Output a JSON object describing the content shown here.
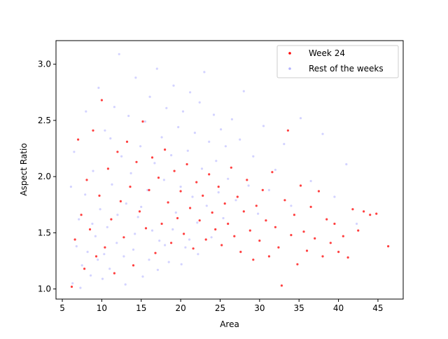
{
  "chart_data": {
    "type": "scatter",
    "title": "",
    "xlabel": "Area",
    "ylabel": "Aspect Ratio",
    "xlim": [
      4.2,
      48.2
    ],
    "ylim": [
      0.91,
      3.21
    ],
    "xticks": [
      5,
      10,
      15,
      20,
      25,
      30,
      35,
      40,
      45
    ],
    "yticks": [
      1.0,
      1.5,
      2.0,
      2.5,
      3.0
    ],
    "xtick_labels": [
      "5",
      "10",
      "15",
      "20",
      "25",
      "30",
      "35",
      "40",
      "45"
    ],
    "ytick_labels": [
      "1.0",
      "1.5",
      "2.0",
      "2.5",
      "3.0"
    ],
    "grid": false,
    "legend_position": "top-right",
    "series": [
      {
        "name": "Rest of the weeks",
        "color": "#8080ff",
        "opacity": 0.35,
        "points": [
          [
            6.3,
            1.05
          ],
          [
            6.8,
            1.38
          ],
          [
            7.1,
            1.62
          ],
          [
            7.5,
            1.21
          ],
          [
            7.9,
            1.84
          ],
          [
            8.2,
            1.33
          ],
          [
            8.6,
            1.12
          ],
          [
            8.9,
            2.05
          ],
          [
            9.2,
            1.47
          ],
          [
            9.5,
            1.26
          ],
          [
            9.8,
            1.71
          ],
          [
            10.1,
            1.09
          ],
          [
            10.4,
            2.41
          ],
          [
            10.7,
            1.55
          ],
          [
            11.0,
            1.18
          ],
          [
            11.3,
            1.93
          ],
          [
            11.6,
            2.62
          ],
          [
            11.9,
            1.41
          ],
          [
            12.2,
            3.09
          ],
          [
            12.5,
            2.18
          ],
          [
            12.8,
            1.29
          ],
          [
            13.1,
            1.76
          ],
          [
            13.4,
            2.54
          ],
          [
            13.7,
            2.03
          ],
          [
            14.0,
            1.35
          ],
          [
            14.3,
            2.88
          ],
          [
            14.6,
            1.64
          ],
          [
            14.9,
            2.27
          ],
          [
            15.2,
            1.11
          ],
          [
            15.5,
            2.49
          ],
          [
            15.8,
            1.88
          ],
          [
            16.1,
            2.71
          ],
          [
            16.4,
            1.52
          ],
          [
            16.7,
            2.12
          ],
          [
            17.0,
            2.96
          ],
          [
            17.3,
            1.43
          ],
          [
            17.6,
            2.35
          ],
          [
            17.9,
            1.97
          ],
          [
            18.2,
            2.61
          ],
          [
            18.5,
            1.24
          ],
          [
            18.8,
            2.19
          ],
          [
            19.1,
            2.81
          ],
          [
            19.4,
            1.68
          ],
          [
            19.7,
            2.44
          ],
          [
            20.0,
            1.91
          ],
          [
            20.3,
            2.58
          ],
          [
            20.6,
            1.37
          ],
          [
            20.9,
            2.23
          ],
          [
            21.2,
            2.75
          ],
          [
            21.5,
            1.82
          ],
          [
            21.8,
            2.39
          ],
          [
            22.1,
            1.59
          ],
          [
            22.4,
            2.66
          ],
          [
            22.7,
            2.07
          ],
          [
            23.0,
            2.93
          ],
          [
            23.3,
            1.74
          ],
          [
            23.6,
            2.31
          ],
          [
            23.9,
            1.46
          ],
          [
            24.2,
            2.55
          ],
          [
            24.5,
            2.14
          ],
          [
            24.8,
            1.86
          ],
          [
            25.1,
            2.42
          ],
          [
            25.4,
            1.63
          ],
          [
            25.7,
            2.27
          ],
          [
            26.0,
            1.98
          ],
          [
            26.5,
            2.51
          ],
          [
            27.0,
            1.79
          ],
          [
            27.5,
            2.33
          ],
          [
            28.0,
            2.76
          ],
          [
            28.6,
            1.92
          ],
          [
            29.2,
            2.18
          ],
          [
            29.8,
            1.67
          ],
          [
            30.5,
            2.45
          ],
          [
            31.2,
            1.88
          ],
          [
            32.0,
            2.06
          ],
          [
            33.1,
            2.29
          ],
          [
            34.0,
            1.74
          ],
          [
            35.2,
            2.52
          ],
          [
            36.5,
            1.96
          ],
          [
            38.0,
            2.38
          ],
          [
            39.5,
            1.82
          ],
          [
            41.0,
            2.11
          ],
          [
            42.3,
            1.58
          ],
          [
            6.1,
            1.91
          ],
          [
            6.5,
            2.22
          ],
          [
            7.3,
            1.01
          ],
          [
            8.0,
            2.58
          ],
          [
            8.8,
            1.58
          ],
          [
            9.6,
            2.79
          ],
          [
            10.3,
            1.31
          ],
          [
            11.1,
            2.34
          ],
          [
            12.0,
            1.66
          ],
          [
            13.0,
            1.04
          ],
          [
            14.2,
            1.49
          ],
          [
            15.0,
            1.73
          ],
          [
            16.0,
            1.26
          ],
          [
            17.1,
            1.17
          ],
          [
            18.0,
            1.39
          ],
          [
            19.0,
            1.53
          ],
          [
            20.1,
            1.22
          ],
          [
            21.1,
            1.44
          ],
          [
            22.2,
            1.31
          ]
        ]
      },
      {
        "name": "Week 24",
        "color": "#ff0000",
        "opacity": 0.75,
        "points": [
          [
            6.2,
            1.02
          ],
          [
            6.6,
            1.44
          ],
          [
            7.0,
            2.33
          ],
          [
            7.4,
            1.66
          ],
          [
            7.8,
            1.18
          ],
          [
            8.1,
            1.97
          ],
          [
            8.5,
            1.53
          ],
          [
            8.9,
            2.41
          ],
          [
            9.3,
            1.29
          ],
          [
            9.7,
            1.83
          ],
          [
            10.0,
            2.68
          ],
          [
            10.4,
            1.37
          ],
          [
            10.8,
            2.07
          ],
          [
            11.2,
            1.62
          ],
          [
            11.6,
            1.14
          ],
          [
            12.0,
            2.22
          ],
          [
            12.4,
            1.78
          ],
          [
            12.8,
            1.46
          ],
          [
            13.2,
            2.31
          ],
          [
            13.6,
            1.91
          ],
          [
            14.0,
            1.21
          ],
          [
            14.4,
            2.13
          ],
          [
            14.8,
            1.69
          ],
          [
            15.2,
            2.49
          ],
          [
            15.6,
            1.54
          ],
          [
            16.0,
            1.88
          ],
          [
            16.4,
            2.17
          ],
          [
            16.8,
            1.32
          ],
          [
            17.2,
            1.99
          ],
          [
            17.6,
            1.58
          ],
          [
            18.0,
            2.24
          ],
          [
            18.4,
            1.77
          ],
          [
            18.8,
            1.41
          ],
          [
            19.2,
            2.05
          ],
          [
            19.6,
            1.63
          ],
          [
            20.0,
            1.87
          ],
          [
            20.4,
            1.49
          ],
          [
            20.8,
            2.11
          ],
          [
            21.2,
            1.72
          ],
          [
            21.6,
            1.36
          ],
          [
            22.0,
            1.95
          ],
          [
            22.4,
            1.61
          ],
          [
            22.8,
            1.83
          ],
          [
            23.2,
            1.44
          ],
          [
            23.6,
            2.02
          ],
          [
            24.0,
            1.68
          ],
          [
            24.4,
            1.53
          ],
          [
            24.8,
            1.91
          ],
          [
            25.2,
            1.39
          ],
          [
            25.6,
            1.76
          ],
          [
            26.0,
            1.58
          ],
          [
            26.4,
            2.08
          ],
          [
            26.8,
            1.47
          ],
          [
            27.2,
            1.82
          ],
          [
            27.6,
            1.33
          ],
          [
            28.0,
            1.69
          ],
          [
            28.4,
            1.97
          ],
          [
            28.8,
            1.52
          ],
          [
            29.2,
            1.26
          ],
          [
            29.6,
            1.74
          ],
          [
            30.0,
            1.43
          ],
          [
            30.4,
            1.88
          ],
          [
            30.8,
            1.61
          ],
          [
            31.2,
            1.29
          ],
          [
            31.6,
            2.04
          ],
          [
            32.0,
            1.55
          ],
          [
            32.4,
            1.37
          ],
          [
            32.8,
            1.03
          ],
          [
            33.2,
            1.79
          ],
          [
            33.6,
            2.41
          ],
          [
            34.0,
            1.48
          ],
          [
            34.4,
            1.66
          ],
          [
            34.8,
            1.22
          ],
          [
            35.2,
            1.92
          ],
          [
            35.6,
            1.51
          ],
          [
            36.0,
            1.34
          ],
          [
            36.5,
            1.73
          ],
          [
            37.0,
            1.45
          ],
          [
            37.5,
            1.87
          ],
          [
            38.0,
            1.29
          ],
          [
            38.5,
            1.62
          ],
          [
            39.0,
            1.41
          ],
          [
            39.5,
            1.58
          ],
          [
            40.0,
            1.33
          ],
          [
            40.6,
            1.47
          ],
          [
            41.2,
            1.28
          ],
          [
            41.8,
            1.71
          ],
          [
            42.5,
            1.52
          ],
          [
            43.2,
            1.69
          ],
          [
            44.0,
            1.66
          ],
          [
            44.8,
            1.67
          ],
          [
            46.3,
            1.38
          ]
        ]
      }
    ]
  }
}
